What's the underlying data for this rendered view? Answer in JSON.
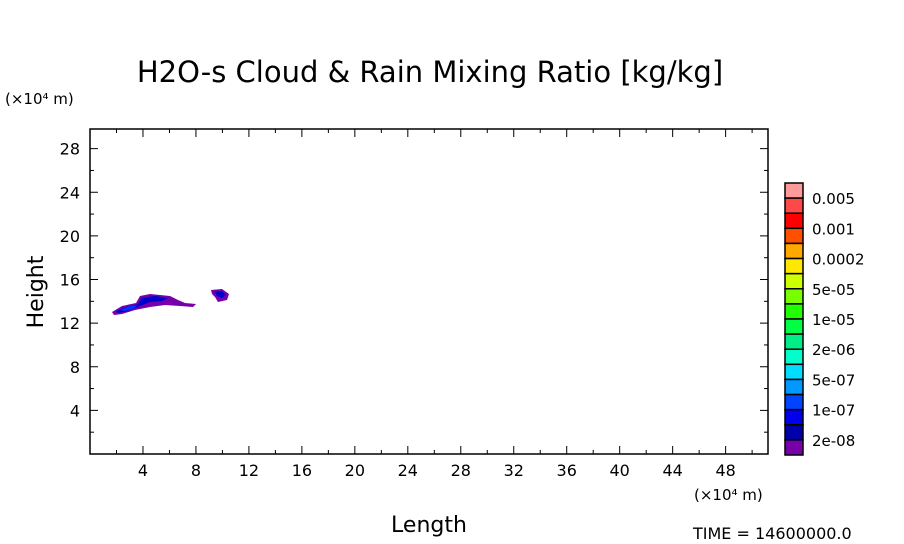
{
  "chart_data": {
    "type": "heatmap",
    "title": "H2O-s Cloud & Rain Mixing Ratio [kg/kg]",
    "xlabel": "Length",
    "ylabel": "Height",
    "x_unit": "(×10⁴ m)",
    "y_unit": "(×10⁴ m)",
    "xlim": [
      0,
      51.2
    ],
    "ylim": [
      0,
      29.8
    ],
    "x_ticks": [
      4,
      8,
      12,
      16,
      20,
      24,
      28,
      32,
      36,
      40,
      44,
      48
    ],
    "y_ticks": [
      4,
      8,
      12,
      16,
      20,
      24,
      28
    ],
    "legend": {
      "placement": "right",
      "labels": [
        "0.005",
        "0.001",
        "0.0002",
        "5e-05",
        "1e-05",
        "2e-06",
        "5e-07",
        "1e-07",
        "2e-08"
      ],
      "colors": [
        "#ff9a9a",
        "#ff4848",
        "#ff0000",
        "#ff5000",
        "#ffa800",
        "#ffe800",
        "#ccff00",
        "#77ff00",
        "#22ff00",
        "#00ff44",
        "#00ee88",
        "#00ffcc",
        "#00ddff",
        "#0099ff",
        "#0044ff",
        "#0000ee",
        "#0000aa",
        "#7700aa"
      ]
    },
    "features": [
      {
        "description_label": "",
        "x_range": [
          1.7,
          8
        ],
        "y_range": [
          12.9,
          14.6
        ]
      },
      {
        "description_label": "",
        "x_range": [
          9,
          10.2
        ],
        "y_range": [
          14,
          15.1
        ]
      }
    ],
    "footer": "TIME = 14600000.0"
  }
}
